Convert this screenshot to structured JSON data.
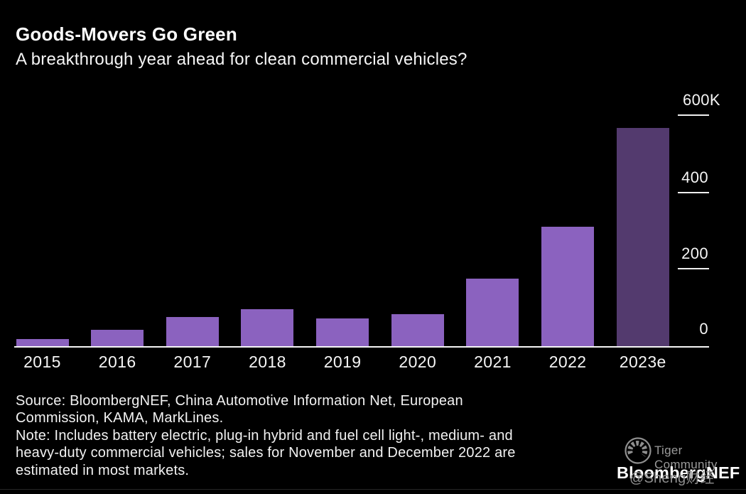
{
  "header": {
    "title": "Goods-Movers Go Green",
    "subtitle": "A breakthrough year ahead for clean commercial vehicles?"
  },
  "chart_data": {
    "type": "bar",
    "title": "Goods-Movers Go Green",
    "subtitle": "A breakthrough year ahead for clean commercial vehicles?",
    "categories": [
      "2015",
      "2016",
      "2017",
      "2018",
      "2019",
      "2020",
      "2021",
      "2022",
      "2023e"
    ],
    "values": [
      18,
      42,
      75,
      96,
      71,
      83,
      175,
      309,
      565
    ],
    "unit": "thousand vehicles",
    "ylim": [
      0,
      600
    ],
    "yticks": [
      {
        "value": 600,
        "label": "600K"
      },
      {
        "value": 400,
        "label": "400"
      },
      {
        "value": 200,
        "label": "200"
      },
      {
        "value": 0,
        "label": "0"
      }
    ],
    "ytick_side": "right",
    "grid": "off",
    "legend": "none",
    "background": "#000000",
    "bar_color": "#8b62bf",
    "highlight_color": "#533a6e",
    "highlight_index": 8
  },
  "footer": {
    "lines": [
      "Source: BloombergNEF, China Automotive Information Net, European",
      "Commission, KAMA, MarkLines.",
      "Note: Includes battery electric, plug-in hybrid and fuel cell light-, medium- and",
      "heavy-duty commercial vehicles; sales for November and December 2022 are",
      "estimated in most markets."
    ]
  },
  "watermark": {
    "community_label": "Tiger Community",
    "handle": "@Sheng财经",
    "brand": "BloombergNEF",
    "gray_color": "#9a9a9a"
  }
}
